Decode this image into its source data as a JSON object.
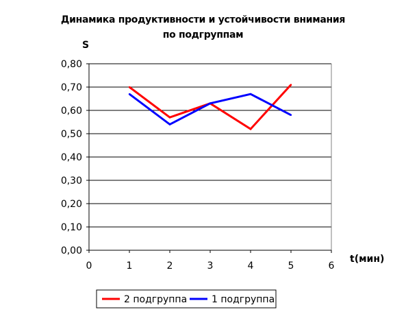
{
  "chart_data": {
    "type": "line",
    "title": [
      "Динамика продуктивности и устойчивости внимания",
      "по подгруппам"
    ],
    "xlabel": "t(мин)",
    "ylabel": "S",
    "xlim": [
      0,
      6
    ],
    "ylim": [
      0,
      0.8
    ],
    "x_ticks": [
      "0",
      "1",
      "2",
      "3",
      "4",
      "5",
      "6"
    ],
    "y_ticks": [
      "0,00",
      "0,10",
      "0,20",
      "0,30",
      "0,40",
      "0,50",
      "0,60",
      "0,70",
      "0,80"
    ],
    "grid": true,
    "legend_position": "bottom",
    "series": [
      {
        "name": "2 подгруппа",
        "color": "#ff0000",
        "x": [
          1,
          2,
          3,
          4,
          5
        ],
        "values": [
          0.7,
          0.57,
          0.63,
          0.52,
          0.71
        ]
      },
      {
        "name": "1 подгруппа",
        "color": "#0000ff",
        "x": [
          1,
          2,
          3,
          4,
          5
        ],
        "values": [
          0.67,
          0.54,
          0.63,
          0.67,
          0.58
        ]
      }
    ]
  }
}
